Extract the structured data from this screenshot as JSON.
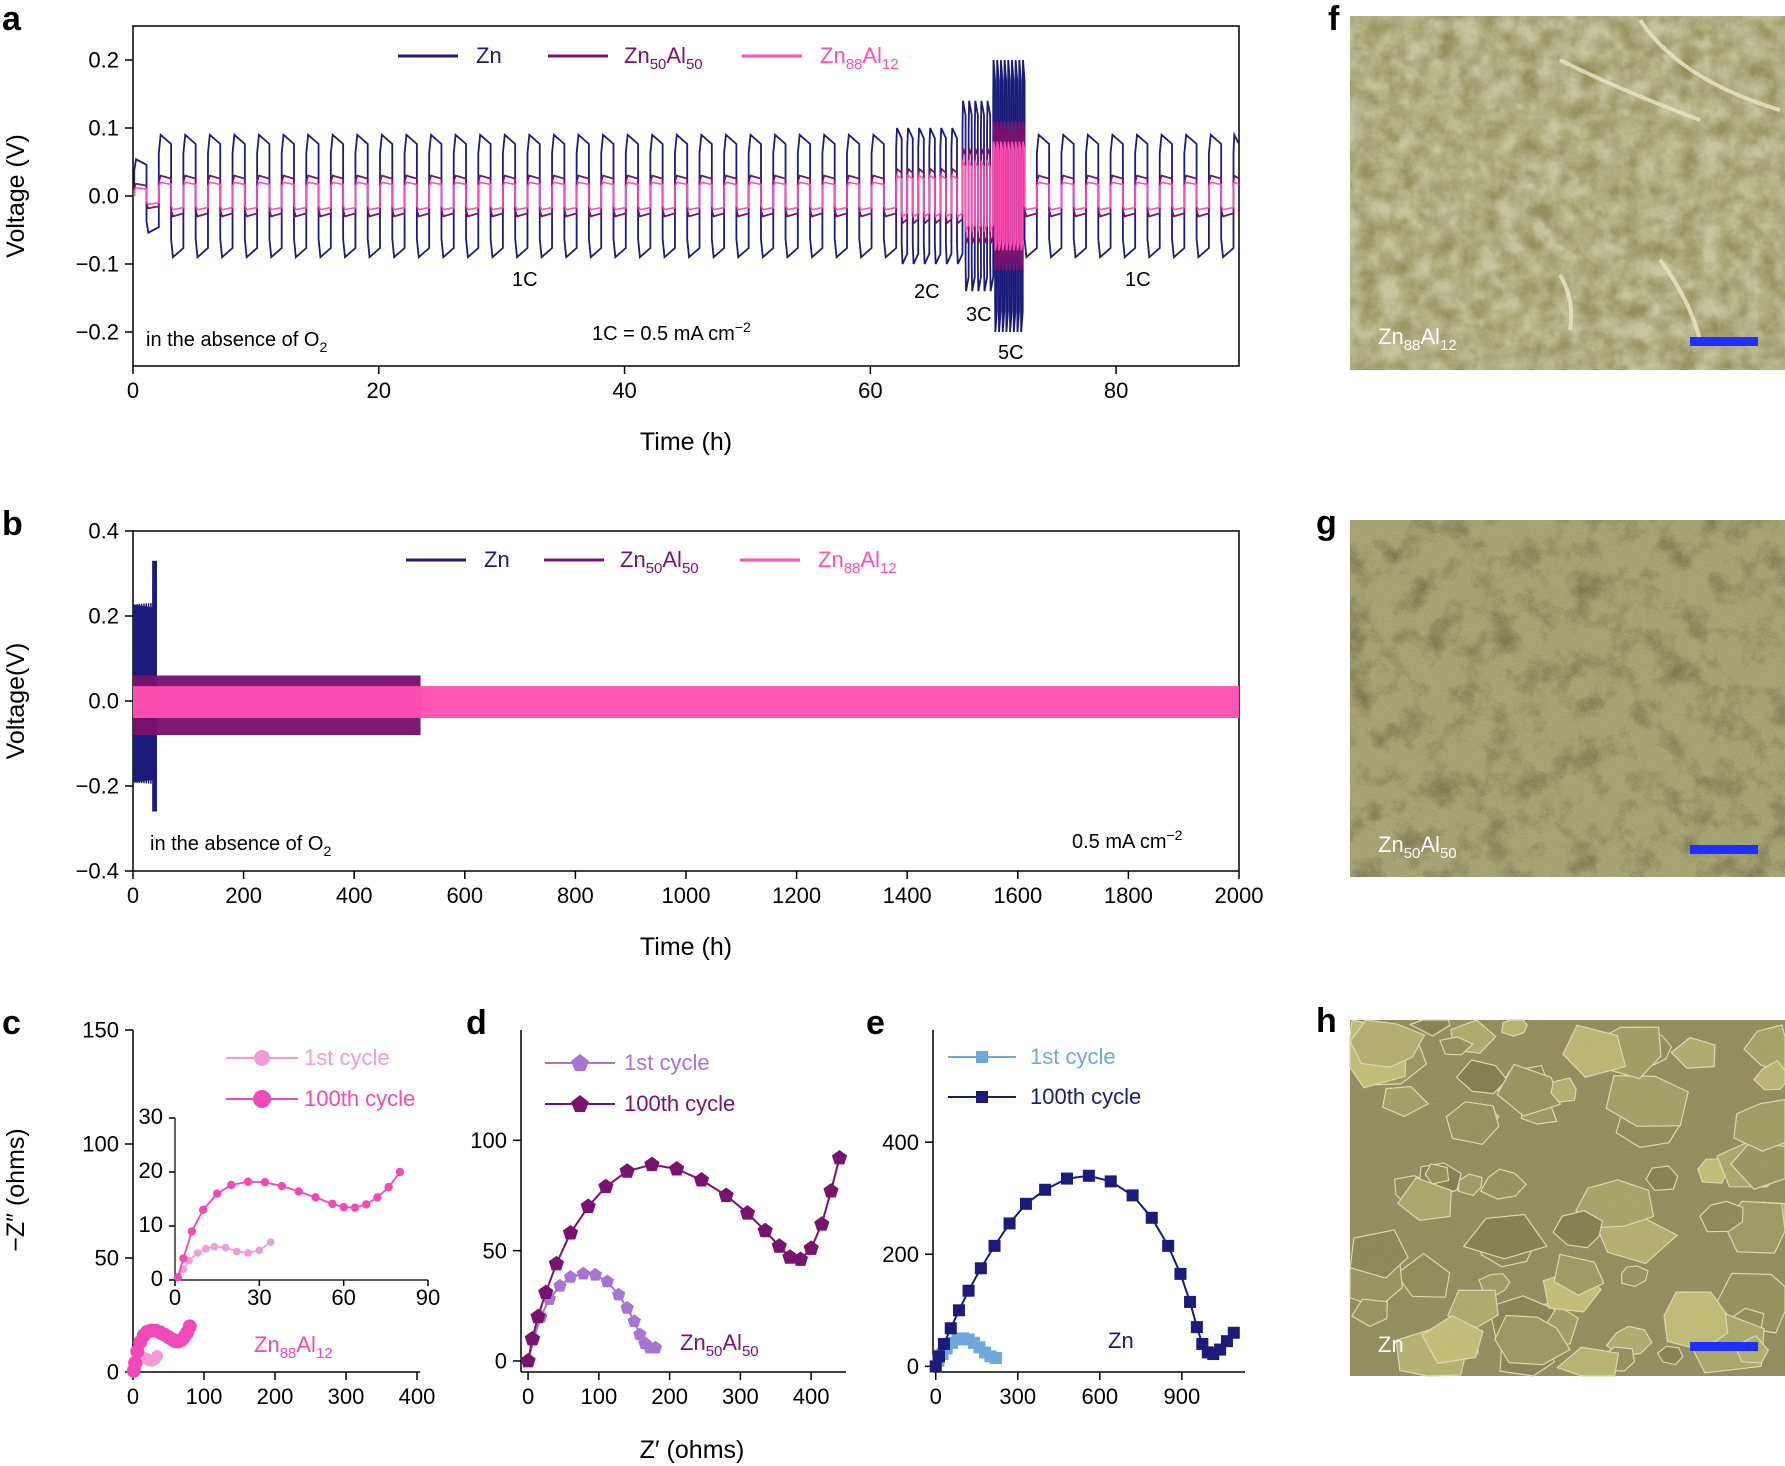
{
  "figure": {
    "panel_letters": [
      "a",
      "b",
      "c",
      "d",
      "e",
      "f",
      "g",
      "h"
    ]
  },
  "chart_data": [
    {
      "id": "a",
      "type": "line",
      "title": "",
      "xlabel": "Time (h)",
      "ylabel": "Voltage (V)",
      "xlim": [
        0,
        90
      ],
      "ylim": [
        -0.25,
        0.25
      ],
      "xticks": [
        0,
        20,
        40,
        60,
        80
      ],
      "yticks": [
        -0.2,
        -0.1,
        0.0,
        0.1,
        0.2
      ],
      "ytick_labels": [
        "−0.2",
        "−0.1",
        "0.0",
        "0.1",
        "0.2"
      ],
      "legend": [
        "Zn",
        "Zn50Al50",
        "Zn88Al12"
      ],
      "series": [
        {
          "name": "Zn",
          "color": "#1b1b7a",
          "polarization_by_rate": {
            "1C": 0.09,
            "2C": 0.1,
            "3C": 0.14,
            "5C": 0.2
          }
        },
        {
          "name": "Zn50Al50",
          "color": "#7a1270",
          "polarization_by_rate": {
            "1C": 0.03,
            "2C": 0.04,
            "3C": 0.07,
            "5C": 0.11
          }
        },
        {
          "name": "Zn88Al12",
          "color": "#ff4fb3",
          "polarization_by_rate": {
            "1C": 0.02,
            "2C": 0.03,
            "3C": 0.05,
            "5C": 0.08
          }
        }
      ],
      "rate_segments": [
        {
          "label": "1C",
          "start": 0,
          "end": 61.5
        },
        {
          "label": "2C",
          "start": 61.5,
          "end": 67.5
        },
        {
          "label": "3C",
          "start": 67.5,
          "end": 70
        },
        {
          "label": "5C",
          "start": 70,
          "end": 72.5
        },
        {
          "label": "1C",
          "start": 72.5,
          "end": 90
        }
      ],
      "annotations": [
        "1C",
        "2C",
        "3C",
        "5C",
        "1C"
      ],
      "note_left": "in the absence of O",
      "note_left_sub": "2",
      "note_right": "1C = 0.5 mA cm",
      "note_right_sup": "−2"
    },
    {
      "id": "b",
      "type": "line",
      "title": "",
      "xlabel": "Time (h)",
      "ylabel": "Voltage(V)",
      "xlim": [
        0,
        2000
      ],
      "ylim": [
        -0.4,
        0.4
      ],
      "xticks": [
        0,
        200,
        400,
        600,
        800,
        1000,
        1200,
        1400,
        1600,
        1800,
        2000
      ],
      "yticks": [
        -0.4,
        -0.2,
        0.0,
        0.2,
        0.4
      ],
      "ytick_labels": [
        "−0.4",
        "−0.2",
        "0.0",
        "0.2",
        "0.4"
      ],
      "legend": [
        "Zn",
        "Zn50Al50",
        "Zn88Al12"
      ],
      "series": [
        {
          "name": "Zn",
          "color": "#1b1b7a",
          "end_time": 42,
          "max_voltage": 0.33,
          "min_voltage": -0.26
        },
        {
          "name": "Zn50Al50",
          "color": "#7a1270",
          "end_time": 520,
          "max_voltage": 0.06,
          "min_voltage": -0.08
        },
        {
          "name": "Zn88Al12",
          "color": "#ff4fb3",
          "end_time": 2000,
          "max_voltage": 0.035,
          "min_voltage": -0.04
        }
      ],
      "note_left": "in the absence of O",
      "note_left_sub": "2",
      "note_right": "0.5 mA cm",
      "note_right_sup": "−2"
    },
    {
      "id": "c",
      "type": "scatter",
      "xlabel": "",
      "ylabel": "−Z″ (ohms)",
      "xlim": [
        0,
        400
      ],
      "ylim": [
        0,
        150
      ],
      "xticks": [
        0,
        100,
        200,
        300,
        400
      ],
      "yticks": [
        0,
        50,
        100,
        150
      ],
      "legend": [
        "1st cycle",
        "100th cycle"
      ],
      "sample_label": "Zn88Al12",
      "series": [
        {
          "name": "1st cycle",
          "color": "#f39ad8",
          "x": [
            1,
            3,
            5,
            8,
            11,
            14,
            18,
            22,
            26,
            30,
            34
          ],
          "y": [
            0.5,
            2,
            3.6,
            5,
            5.8,
            6.2,
            6.0,
            5.3,
            5.0,
            5.5,
            7.0
          ]
        },
        {
          "name": "100th cycle",
          "color": "#f04ab8",
          "x": [
            1,
            3,
            6,
            10,
            15,
            20,
            26,
            32,
            38,
            44,
            50,
            56,
            60,
            64,
            68,
            72,
            76,
            80
          ],
          "y": [
            0.5,
            4,
            9,
            13,
            16,
            17.6,
            18.2,
            18.1,
            17.4,
            16.4,
            15.3,
            14.1,
            13.5,
            13.4,
            14,
            15.3,
            17.2,
            20
          ]
        }
      ],
      "inset": {
        "xlim": [
          0,
          90
        ],
        "ylim": [
          0,
          30
        ],
        "xticks": [
          0,
          30,
          60,
          90
        ],
        "yticks": [
          0,
          10,
          20,
          30
        ]
      }
    },
    {
      "id": "d",
      "type": "scatter",
      "xlabel": "Z′ (ohms)",
      "ylabel": "",
      "xlim": [
        -10,
        445
      ],
      "ylim": [
        -5,
        150
      ],
      "xticks": [
        0,
        100,
        200,
        300,
        400
      ],
      "yticks": [
        0,
        50,
        100
      ],
      "legend": [
        "1st cycle",
        "100th cycle"
      ],
      "sample_label": "Zn50Al50",
      "series": [
        {
          "name": "1st cycle",
          "color": "#a774d4",
          "x": [
            0,
            8,
            18,
            30,
            45,
            60,
            78,
            95,
            112,
            128,
            140,
            150,
            158,
            165,
            172,
            180
          ],
          "y": [
            0,
            10,
            20,
            28,
            34,
            38,
            39.5,
            39,
            36,
            30,
            24,
            18,
            12,
            8,
            6,
            6
          ]
        },
        {
          "name": "100th cycle",
          "color": "#7a1270",
          "x": [
            0,
            6,
            14,
            25,
            40,
            60,
            85,
            110,
            140,
            175,
            210,
            245,
            280,
            310,
            335,
            355,
            370,
            385,
            400,
            415,
            428,
            440
          ],
          "y": [
            0,
            10,
            20,
            31,
            44,
            58,
            70,
            79,
            86,
            89,
            87,
            82,
            75,
            67,
            59,
            52,
            47,
            46,
            51,
            62,
            77,
            92
          ]
        }
      ]
    },
    {
      "id": "e",
      "type": "scatter",
      "xlabel": "",
      "ylabel": "",
      "xlim": [
        -10,
        1120
      ],
      "ylim": [
        -10,
        600
      ],
      "xticks": [
        0,
        300,
        600,
        900
      ],
      "yticks": [
        0,
        200,
        400
      ],
      "legend": [
        "1st cycle",
        "100th cycle"
      ],
      "sample_label": "Zn",
      "series": [
        {
          "name": "1st cycle",
          "color": "#6fa9dc",
          "x": [
            0,
            10,
            25,
            40,
            60,
            80,
            100,
            120,
            140,
            160,
            180,
            200,
            220
          ],
          "y": [
            0,
            10,
            22,
            32,
            42,
            48,
            50,
            48,
            42,
            34,
            25,
            18,
            15
          ]
        },
        {
          "name": "100th cycle",
          "color": "#1b1b7a",
          "x": [
            0,
            12,
            30,
            55,
            85,
            120,
            165,
            215,
            270,
            330,
            400,
            480,
            560,
            640,
            720,
            790,
            850,
            895,
            930,
            955,
            975,
            995,
            1015,
            1040,
            1065,
            1090
          ],
          "y": [
            0,
            18,
            40,
            68,
            100,
            135,
            175,
            215,
            255,
            290,
            315,
            335,
            340,
            330,
            305,
            265,
            215,
            165,
            115,
            70,
            40,
            25,
            22,
            30,
            45,
            60
          ]
        }
      ]
    }
  ],
  "sem_images": [
    {
      "id": "f",
      "label": "Zn",
      "label_sub": "88",
      "label_tail": "Al",
      "label_tail_sub": "12",
      "texture": "smooth"
    },
    {
      "id": "g",
      "label": "Zn",
      "label_sub": "50",
      "label_tail": "Al",
      "label_tail_sub": "50",
      "texture": "porous"
    },
    {
      "id": "h",
      "label": "Zn",
      "label_sub": "",
      "label_tail": "",
      "label_tail_sub": "",
      "texture": "flakes"
    }
  ],
  "colors": {
    "zn": "#1b1b7a",
    "znal50": "#7a1270",
    "znal12": "#ff4fb3",
    "scale_bar": "#1f2fff",
    "sem_base": "#8d8a55"
  }
}
